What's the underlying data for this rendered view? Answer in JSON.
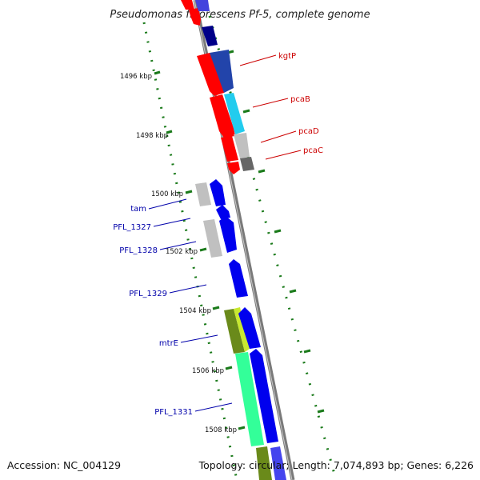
{
  "title": "Pseudomonas fluorescens Pf-5, complete genome",
  "footer": {
    "accession": "Accession: NC_004129",
    "topology": "Topology: circular; Length: 7,074,893 bp; Genes: 6,226"
  },
  "colors": {
    "backbone": "#888888",
    "tick_green": "#1a7a1a",
    "forward_label": "#cc0000",
    "reverse_label": "#0000aa",
    "red_gene": "#ff0000",
    "blue_gene": "#0000ee",
    "cyan_gene": "#22ccee",
    "navy_gene": "#000088",
    "grey_gene": "#c0c0c0",
    "olive_gene": "#6a8a1a",
    "yellowgreen_gene": "#c8e830",
    "seafoam_gene": "#33ff99"
  },
  "kbp_labels": [
    "1496 kbp",
    "1498 kbp",
    "1500 kbp",
    "1502 kbp",
    "1504 kbp",
    "1506 kbp",
    "1508 kbp"
  ],
  "forward_labels": [
    "kgtP",
    "pcaB",
    "pcaD",
    "pcaC"
  ],
  "reverse_labels": [
    "tam",
    "PFL_1327",
    "PFL_1328",
    "PFL_1329",
    "mtrE",
    "PFL_1331"
  ]
}
